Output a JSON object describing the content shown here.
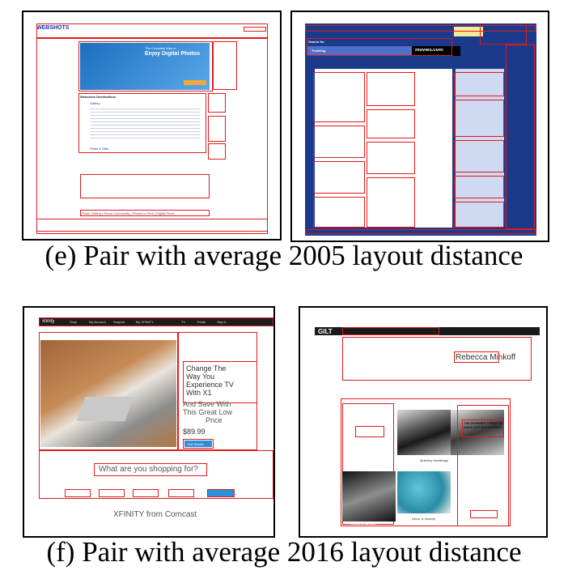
{
  "captions": {
    "e": "(e) Pair with average 2005 layout distance",
    "f": "(f) Pair with average 2016 layout distance"
  },
  "panels": {
    "webshots": {
      "logo": "WEBSHOTS",
      "hero_small": "The Complete Way to",
      "hero_title": "Enjoy Digital Photos",
      "section_title": "Webshots Destinations",
      "items": [
        "Gallery",
        "Community",
        "My Photos",
        "Prints & Gifts"
      ],
      "footer": "Photo Gallery | Photo Community | Photos to Print | Digital Photo"
    },
    "movies": {
      "search_label": "Search for",
      "nav_title": "Ticketing",
      "logo": "movies.com"
    },
    "xfinity": {
      "logo": "xfinity",
      "nav": [
        "Shop",
        "My Account",
        "Support",
        "My XFINITY",
        "TV",
        "Email",
        "Sign In"
      ],
      "promo_lines": [
        "Change The",
        "Way You",
        "Experience TV",
        "With X1",
        "And Save With",
        "This Great Low",
        "Price"
      ],
      "price": "$89.99",
      "cta": "Get Started",
      "question": "What are you shopping for?",
      "footer": "XFINITY from Comcast"
    },
    "gilt": {
      "logo": "GILT",
      "brand": "Rebecca Minkoff",
      "promo_title": "THE RUNNING ITEMS TO SAKS OFF 5TH STORES",
      "label_1": "Mulberry Handbags",
      "label_2": "Decor & Jewelry",
      "label_3": "Crystal & Barware"
    }
  },
  "colors": {
    "annotation": "#e01b1b",
    "border": "#000000"
  }
}
